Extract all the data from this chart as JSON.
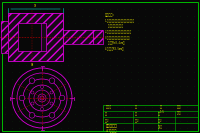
{
  "bg_color": "#080808",
  "dot_color": "#0d3d0d",
  "border_color": "#00bb00",
  "magenta": "#dd00dd",
  "yellow": "#dddd00",
  "cyan": "#00cccc",
  "red": "#cc0000",
  "green": "#00cc00"
}
